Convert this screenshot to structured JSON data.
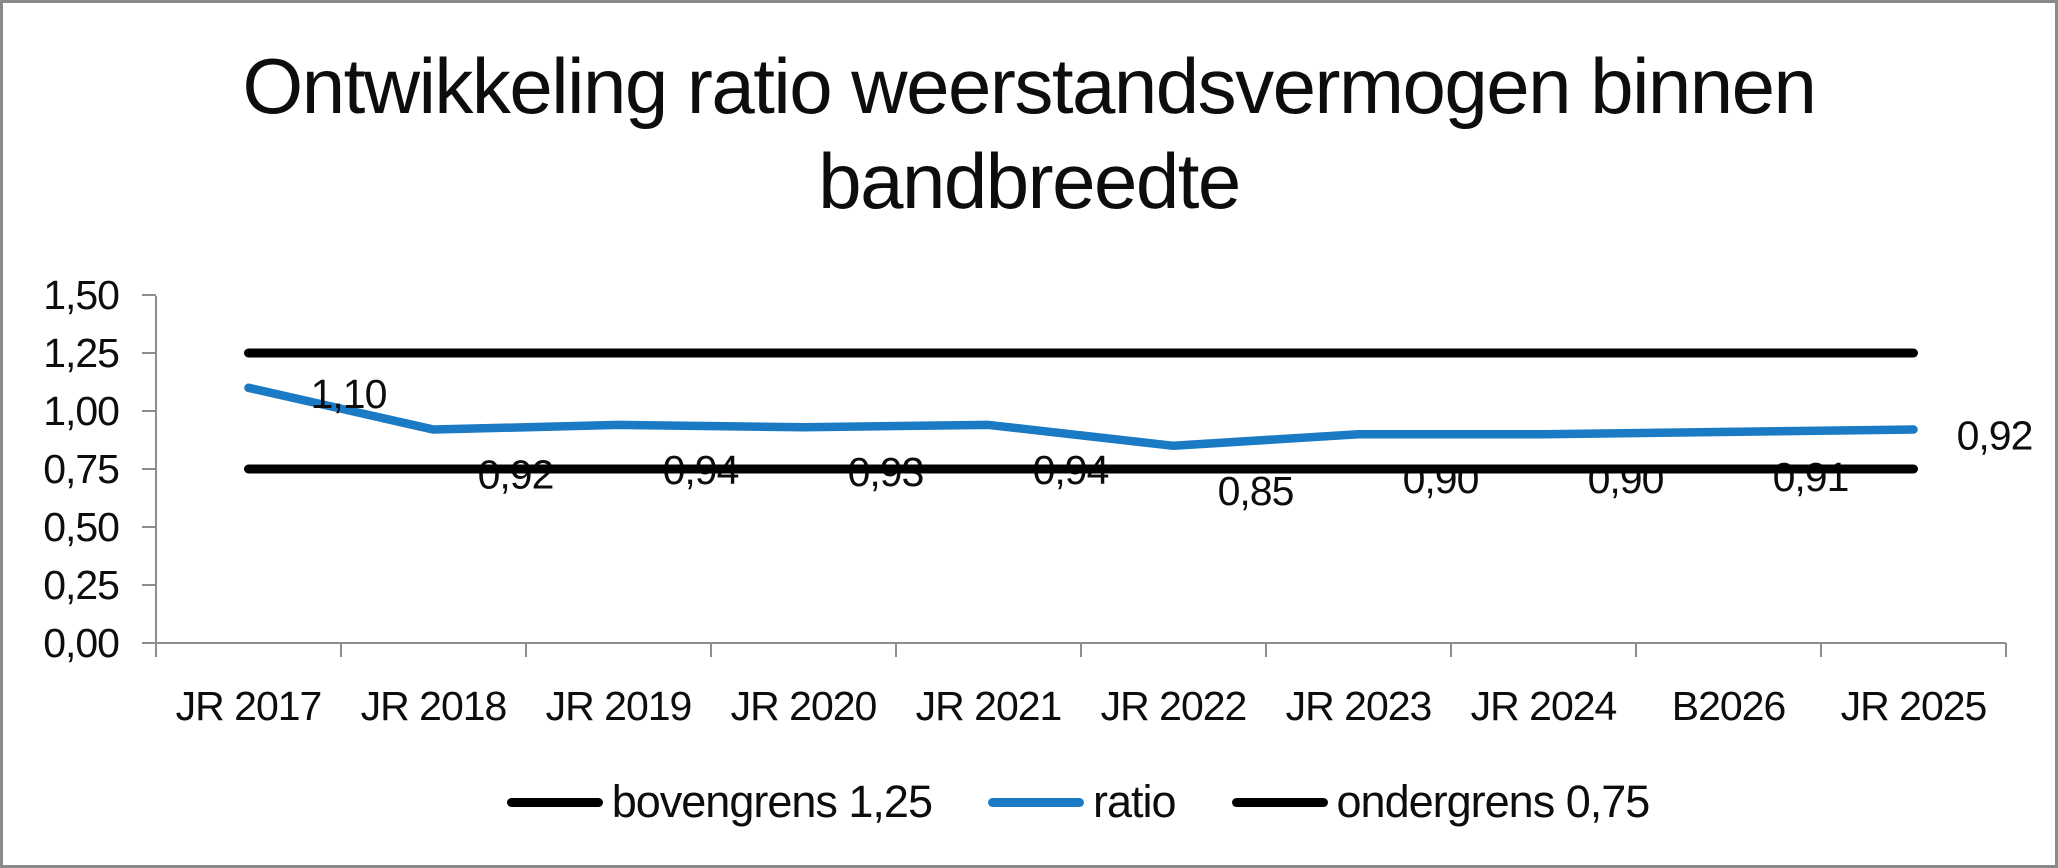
{
  "title": {
    "text": "Ontwikkeling ratio weerstandsvermogen binnen bandbreedte",
    "lines": [
      "Ontwikkeling ratio weerstandsvermogen binnen",
      "bandbreedte"
    ]
  },
  "chart_data": {
    "type": "line",
    "title": "Ontwikkeling ratio weerstandsvermogen binnen bandbreedte",
    "categories": [
      "JR 2017",
      "JR 2018",
      "JR 2019",
      "JR 2020",
      "JR 2021",
      "JR 2022",
      "JR 2023",
      "JR 2024",
      "B2026",
      "JR 2025"
    ],
    "series": [
      {
        "name": "bovengrens 1,25",
        "type": "constant-line",
        "value": 1.25,
        "color": "#000000"
      },
      {
        "name": "ratio",
        "type": "line",
        "values": [
          1.1,
          0.92,
          0.94,
          0.93,
          0.94,
          0.85,
          0.9,
          0.9,
          0.91,
          0.92
        ],
        "point_labels": [
          "1,10",
          "0,92",
          "0,94",
          "0,93",
          "0,94",
          "0,85",
          "0,90",
          "0,90",
          "0,91",
          "0,92"
        ],
        "color": "#1b7ac4"
      },
      {
        "name": "ondergrens 0,75",
        "type": "constant-line",
        "value": 0.75,
        "color": "#000000"
      }
    ],
    "xlabel": "",
    "ylabel": "",
    "ylim": [
      0,
      1.5
    ],
    "yticks": {
      "values": [
        0,
        0.25,
        0.5,
        0.75,
        1.0,
        1.25,
        1.5
      ],
      "labels": [
        "0,00",
        "0,25",
        "0,50",
        "0,75",
        "1,00",
        "1,25",
        "1,50"
      ]
    },
    "grid": false,
    "legend_position": "bottom"
  },
  "legend": {
    "items": [
      {
        "label": "bovengrens 1,25",
        "color": "#000000",
        "swatch": "line"
      },
      {
        "label": "ratio",
        "color": "#1b7ac4",
        "swatch": "line"
      },
      {
        "label": "ondergrens 0,75",
        "color": "#000000",
        "swatch": "line"
      }
    ]
  },
  "colors": {
    "axis": "#8e8e8e",
    "frame": "#8a8a8a",
    "text": "#0d0d0d",
    "ratio_line": "#1b7ac4",
    "limit_line": "#000000",
    "background": "#ffffff"
  }
}
